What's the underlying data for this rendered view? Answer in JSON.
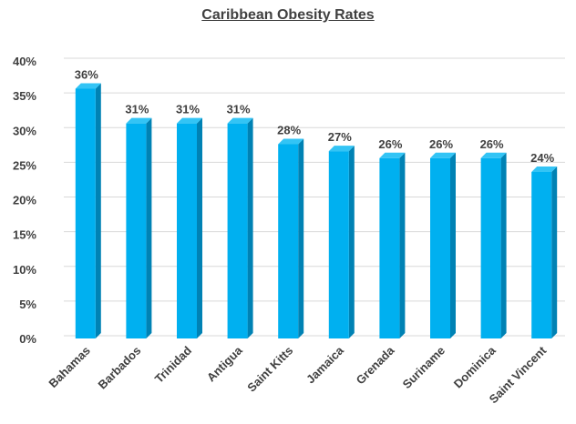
{
  "chart_data": {
    "type": "bar",
    "title": "Caribbean Obesity Rates",
    "xlabel": "",
    "ylabel": "",
    "categories": [
      "Bahamas",
      "Barbados",
      "Trinidad",
      "Antigua",
      "Saint Kitts",
      "Jamaica",
      "Grenada",
      "Suriname",
      "Dominica",
      "Saint Vincent"
    ],
    "values": [
      36,
      31,
      31,
      31,
      28,
      27,
      26,
      26,
      26,
      24
    ],
    "data_labels": [
      "36%",
      "31%",
      "31%",
      "31%",
      "28%",
      "27%",
      "26%",
      "26%",
      "26%",
      "24%"
    ],
    "ylim": [
      0,
      40
    ],
    "y_ticks": [
      0,
      5,
      10,
      15,
      20,
      25,
      30,
      35,
      40
    ],
    "y_tick_labels": [
      "0%",
      "5%",
      "10%",
      "15%",
      "20%",
      "25%",
      "30%",
      "35%",
      "40%"
    ],
    "grid": true,
    "legend": "none",
    "colors": {
      "bar_front": "#00B0F0",
      "bar_side": "#0082B4",
      "bar_top": "#33C4F5",
      "grid": "#D9D9D9",
      "text": "#404040"
    }
  }
}
